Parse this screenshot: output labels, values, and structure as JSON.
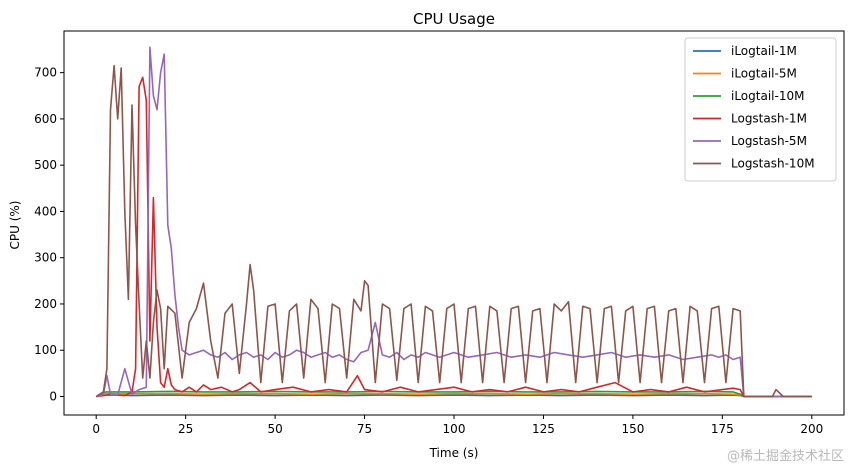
{
  "chart_data": {
    "type": "line",
    "title": "CPU Usage",
    "xlabel": "Time (s)",
    "ylabel": "CPU (%)",
    "xlim": [
      -9,
      209
    ],
    "ylim": [
      -40,
      790
    ],
    "xticks": [
      0,
      25,
      50,
      75,
      100,
      125,
      150,
      175,
      200
    ],
    "yticks": [
      0,
      100,
      200,
      300,
      400,
      500,
      600,
      700
    ],
    "grid": false,
    "legend_position": "top-right",
    "series": [
      {
        "name": "iLogtail-1M",
        "color": "#1f77b4",
        "x": [
          0,
          1,
          2,
          3,
          5,
          10,
          20,
          30,
          40,
          50,
          60,
          70,
          80,
          90,
          100,
          110,
          120,
          130,
          140,
          150,
          160,
          170,
          178,
          180,
          181,
          185,
          190,
          195,
          200
        ],
        "y": [
          0,
          2,
          3,
          3,
          3,
          2,
          3,
          2,
          3,
          2,
          3,
          2,
          3,
          2,
          3,
          2,
          3,
          2,
          3,
          2,
          3,
          2,
          3,
          2,
          0,
          0,
          0,
          0,
          0
        ]
      },
      {
        "name": "iLogtail-5M",
        "color": "#ff7f0e",
        "x": [
          0,
          1,
          2,
          3,
          5,
          10,
          20,
          30,
          40,
          50,
          60,
          70,
          80,
          90,
          100,
          110,
          120,
          130,
          140,
          150,
          160,
          170,
          178,
          180,
          181,
          185,
          190,
          195,
          200
        ],
        "y": [
          0,
          3,
          5,
          6,
          6,
          6,
          6,
          5,
          6,
          6,
          5,
          6,
          6,
          5,
          6,
          6,
          5,
          6,
          6,
          5,
          6,
          6,
          5,
          3,
          0,
          0,
          0,
          0,
          0
        ]
      },
      {
        "name": "iLogtail-10M",
        "color": "#2ca02c",
        "x": [
          0,
          1,
          2,
          3,
          5,
          10,
          20,
          30,
          40,
          50,
          60,
          70,
          80,
          90,
          100,
          110,
          120,
          130,
          140,
          150,
          160,
          170,
          178,
          180,
          181,
          185,
          190,
          195,
          200
        ],
        "y": [
          0,
          5,
          9,
          10,
          10,
          10,
          11,
          10,
          10,
          11,
          10,
          10,
          11,
          10,
          10,
          11,
          10,
          10,
          11,
          10,
          10,
          11,
          10,
          5,
          0,
          0,
          0,
          0,
          0
        ]
      },
      {
        "name": "Logstash-1M",
        "color": "#d62728",
        "x": [
          0,
          2,
          4,
          6,
          8,
          10,
          11,
          12,
          13,
          14,
          15,
          16,
          17,
          18,
          19,
          20,
          21,
          22,
          24,
          26,
          28,
          30,
          32,
          35,
          38,
          40,
          43,
          46,
          50,
          55,
          60,
          65,
          70,
          73,
          75,
          80,
          85,
          90,
          95,
          100,
          105,
          110,
          115,
          120,
          125,
          130,
          135,
          140,
          145,
          150,
          155,
          160,
          165,
          170,
          175,
          178,
          180,
          181,
          185,
          190,
          195,
          200
        ],
        "y": [
          0,
          2,
          5,
          3,
          2,
          10,
          60,
          670,
          690,
          640,
          120,
          430,
          150,
          30,
          20,
          60,
          25,
          15,
          10,
          20,
          10,
          25,
          15,
          20,
          10,
          15,
          30,
          10,
          15,
          20,
          10,
          15,
          10,
          45,
          15,
          10,
          20,
          10,
          15,
          20,
          10,
          15,
          10,
          20,
          10,
          15,
          10,
          20,
          30,
          10,
          15,
          10,
          20,
          10,
          15,
          18,
          15,
          0,
          0,
          0,
          0,
          0
        ]
      },
      {
        "name": "Logstash-5M",
        "color": "#9467bd",
        "x": [
          0,
          2,
          3,
          4,
          6,
          8,
          10,
          12,
          14,
          15,
          16,
          17,
          18,
          19,
          20,
          21,
          22,
          23,
          24,
          26,
          28,
          30,
          32,
          34,
          36,
          38,
          40,
          42,
          44,
          46,
          48,
          50,
          52,
          54,
          56,
          58,
          60,
          62,
          64,
          66,
          68,
          70,
          72,
          74,
          76,
          78,
          80,
          82,
          84,
          86,
          88,
          90,
          92,
          94,
          96,
          98,
          100,
          104,
          108,
          112,
          116,
          120,
          124,
          128,
          132,
          136,
          140,
          144,
          148,
          152,
          156,
          160,
          164,
          168,
          172,
          174,
          176,
          178,
          180,
          181,
          185,
          190,
          195,
          200
        ],
        "y": [
          0,
          5,
          45,
          5,
          3,
          60,
          5,
          15,
          20,
          755,
          650,
          620,
          700,
          740,
          370,
          320,
          220,
          150,
          100,
          90,
          95,
          100,
          90,
          85,
          95,
          80,
          90,
          95,
          85,
          90,
          80,
          95,
          85,
          90,
          100,
          95,
          85,
          90,
          95,
          85,
          90,
          80,
          75,
          95,
          100,
          160,
          90,
          85,
          95,
          80,
          90,
          85,
          95,
          90,
          85,
          90,
          95,
          85,
          90,
          95,
          85,
          90,
          85,
          95,
          90,
          85,
          90,
          95,
          85,
          90,
          85,
          90,
          80,
          85,
          90,
          85,
          90,
          80,
          85,
          0,
          0,
          0,
          0,
          0
        ]
      },
      {
        "name": "Logstash-10M",
        "color": "#8c564b",
        "x": [
          0,
          1,
          2,
          3,
          4,
          5,
          6,
          7,
          8,
          9,
          10,
          11,
          12,
          13,
          14,
          15,
          16,
          17,
          18,
          19,
          20,
          22,
          24,
          26,
          28,
          30,
          32,
          34,
          36,
          38,
          40,
          42,
          43,
          44,
          46,
          48,
          50,
          52,
          54,
          56,
          58,
          60,
          62,
          64,
          66,
          68,
          70,
          72,
          74,
          75,
          76,
          78,
          80,
          82,
          84,
          86,
          88,
          90,
          92,
          94,
          96,
          98,
          100,
          102,
          104,
          106,
          108,
          110,
          112,
          114,
          116,
          118,
          120,
          122,
          124,
          126,
          128,
          130,
          132,
          134,
          136,
          138,
          140,
          142,
          144,
          146,
          148,
          150,
          152,
          154,
          156,
          158,
          160,
          162,
          164,
          166,
          168,
          170,
          172,
          174,
          176,
          178,
          180,
          181,
          185,
          189,
          190,
          192,
          195,
          200
        ],
        "y": [
          0,
          5,
          10,
          60,
          620,
          715,
          600,
          710,
          400,
          210,
          630,
          370,
          200,
          40,
          120,
          40,
          160,
          230,
          190,
          60,
          195,
          180,
          40,
          160,
          190,
          245,
          120,
          40,
          180,
          200,
          50,
          200,
          285,
          230,
          30,
          195,
          200,
          30,
          185,
          200,
          40,
          210,
          190,
          30,
          200,
          190,
          40,
          210,
          185,
          250,
          240,
          30,
          200,
          190,
          35,
          190,
          200,
          30,
          195,
          185,
          30,
          190,
          200,
          30,
          190,
          195,
          30,
          195,
          185,
          30,
          190,
          195,
          30,
          185,
          190,
          30,
          200,
          185,
          205,
          30,
          195,
          190,
          30,
          190,
          195,
          30,
          185,
          195,
          30,
          190,
          195,
          30,
          185,
          190,
          30,
          195,
          185,
          30,
          190,
          195,
          30,
          190,
          185,
          0,
          0,
          0,
          15,
          0,
          0,
          0
        ]
      }
    ]
  },
  "watermark": "@稀土掘金技术社区"
}
